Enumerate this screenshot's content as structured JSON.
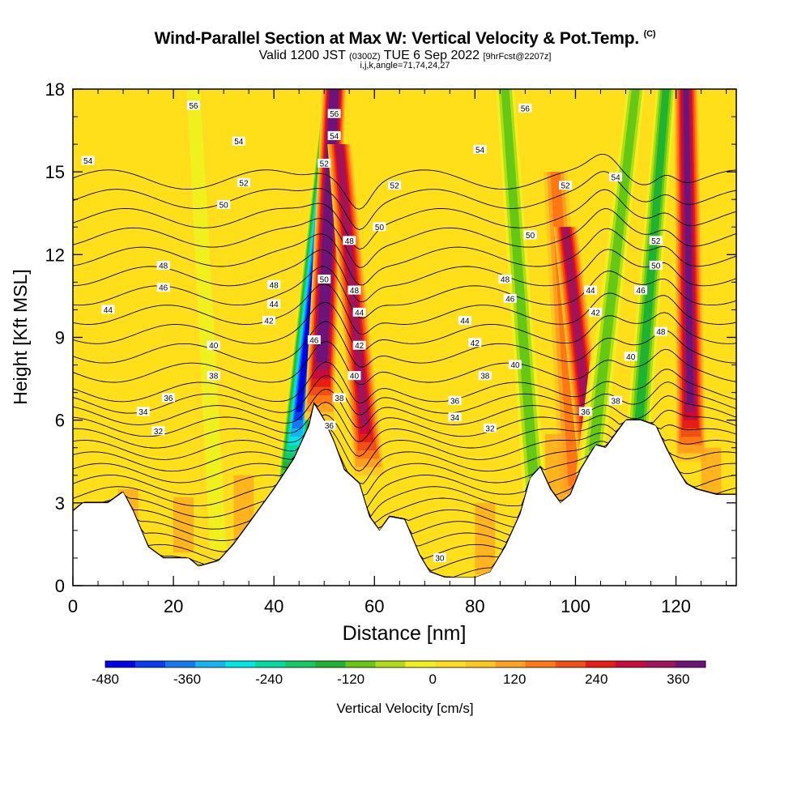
{
  "title": {
    "main": "Wind-Parallel Section at Max W: Vertical Velocity & Pot.Temp.",
    "copyright": "(C)",
    "valid_prefix": "Valid 1200 JST",
    "utc": "(0300Z)",
    "valid_date": "TUE 6 Sep 2022",
    "fcst": "[9hrFcst@2207z]",
    "indices": "i,j,k,angle=71,74,24,27"
  },
  "colors": {
    "ground": "#ffffff",
    "base": "#ffdf1a",
    "palette": [
      "#0000e6",
      "#0a3cf0",
      "#1478f0",
      "#14b4f0",
      "#00e6e6",
      "#00dca0",
      "#14c864",
      "#1eb432",
      "#64c814",
      "#b4dc14",
      "#f0f01e",
      "#ffdc1e",
      "#ffc81e",
      "#ffa01e",
      "#ff7814",
      "#f05014",
      "#e61e14",
      "#c80a3c",
      "#a0145a",
      "#6e1478"
    ]
  },
  "chart_data": {
    "type": "heatmap",
    "xlabel": "Distance [nm]",
    "ylabel": "Height [Kft MSL]",
    "xlim": [
      0,
      132
    ],
    "ylim": [
      0,
      18
    ],
    "x_ticks": [
      0,
      20,
      40,
      60,
      80,
      100,
      120
    ],
    "y_ticks": [
      0,
      3,
      6,
      9,
      12,
      15,
      18
    ],
    "colorbar": {
      "label": "Vertical Velocity [cm/s]",
      "range": [
        -480,
        400
      ],
      "step": 40,
      "tick_labels": [
        -480,
        -360,
        -240,
        -120,
        0,
        120,
        240,
        360
      ]
    },
    "terrain_profile": [
      [
        0,
        2.7
      ],
      [
        2,
        3.0
      ],
      [
        7,
        3.0
      ],
      [
        10,
        3.4
      ],
      [
        12,
        2.7
      ],
      [
        15,
        1.4
      ],
      [
        18,
        1.0
      ],
      [
        23,
        1.0
      ],
      [
        25,
        0.7
      ],
      [
        29,
        0.9
      ],
      [
        32,
        1.5
      ],
      [
        36,
        2.5
      ],
      [
        40,
        3.5
      ],
      [
        44,
        4.6
      ],
      [
        47,
        5.8
      ],
      [
        48,
        6.6
      ],
      [
        50,
        6.0
      ],
      [
        52,
        5.2
      ],
      [
        54,
        4.2
      ],
      [
        57,
        3.7
      ],
      [
        59,
        2.5
      ],
      [
        61,
        2.0
      ],
      [
        63,
        2.5
      ],
      [
        66,
        2.4
      ],
      [
        69,
        1.1
      ],
      [
        71,
        0.5
      ],
      [
        74,
        0.3
      ],
      [
        78,
        0.3
      ],
      [
        80,
        0.3
      ],
      [
        83,
        0.5
      ],
      [
        86,
        1.4
      ],
      [
        89,
        2.6
      ],
      [
        91,
        3.9
      ],
      [
        93,
        4.3
      ],
      [
        95,
        3.5
      ],
      [
        97,
        3.0
      ],
      [
        99,
        3.3
      ],
      [
        101,
        4.2
      ],
      [
        104,
        5.1
      ],
      [
        106,
        5.0
      ],
      [
        108,
        5.5
      ],
      [
        110,
        6.0
      ],
      [
        113,
        6.0
      ],
      [
        116,
        5.8
      ],
      [
        118,
        5.0
      ],
      [
        120,
        4.3
      ],
      [
        122,
        3.7
      ],
      [
        124,
        3.5
      ],
      [
        128,
        3.3
      ],
      [
        132,
        3.3
      ]
    ],
    "updraft_bands": [
      {
        "x_base": 43,
        "x_top": 52,
        "h_min": 3,
        "h_max": 18,
        "w": -480
      },
      {
        "x_base": 49,
        "x_top": 52,
        "h_min": 6,
        "h_max": 18,
        "w": 400
      },
      {
        "x_base": 59,
        "x_top": 53,
        "h_min": 4,
        "h_max": 16,
        "w": 280
      },
      {
        "x_base": 92,
        "x_top": 86,
        "h_min": 3,
        "h_max": 18,
        "w": -160
      },
      {
        "x_base": 100,
        "x_top": 96,
        "h_min": 3,
        "h_max": 15,
        "w": 120
      },
      {
        "x_base": 104,
        "x_top": 98,
        "h_min": 3.5,
        "h_max": 13,
        "w": 280
      },
      {
        "x_base": 103,
        "x_top": 112,
        "h_min": 4,
        "h_max": 18,
        "w": -160
      },
      {
        "x_base": 112,
        "x_top": 118,
        "h_min": 4.5,
        "h_max": 18,
        "w": -200
      },
      {
        "x_base": 123,
        "x_top": 122,
        "h_min": 4.5,
        "h_max": 18,
        "w": 320
      },
      {
        "x_base": 29,
        "x_top": 24,
        "h_min": 1,
        "h_max": 18,
        "w": -80
      }
    ],
    "pot_temp_levels": [
      30,
      32,
      34,
      36,
      38,
      40,
      42,
      44,
      46,
      48,
      50,
      52,
      54,
      56
    ],
    "contour_labels": [
      {
        "x": 24,
        "y": 17.4,
        "label": "56"
      },
      {
        "x": 33,
        "y": 16.1,
        "label": "54"
      },
      {
        "x": 3,
        "y": 15.4,
        "label": "54"
      },
      {
        "x": 34,
        "y": 14.6,
        "label": "52"
      },
      {
        "x": 30,
        "y": 13.8,
        "label": "50"
      },
      {
        "x": 18,
        "y": 11.6,
        "label": "48"
      },
      {
        "x": 18,
        "y": 10.8,
        "label": "46"
      },
      {
        "x": 7,
        "y": 10.0,
        "label": "44"
      },
      {
        "x": 40,
        "y": 10.9,
        "label": "48"
      },
      {
        "x": 40,
        "y": 10.2,
        "label": "44"
      },
      {
        "x": 39,
        "y": 9.6,
        "label": "42"
      },
      {
        "x": 28,
        "y": 8.7,
        "label": "40"
      },
      {
        "x": 28,
        "y": 7.6,
        "label": "38"
      },
      {
        "x": 19,
        "y": 6.8,
        "label": "36"
      },
      {
        "x": 14,
        "y": 6.3,
        "label": "34"
      },
      {
        "x": 17,
        "y": 5.6,
        "label": "32"
      },
      {
        "x": 52,
        "y": 17.1,
        "label": "56"
      },
      {
        "x": 52,
        "y": 16.3,
        "label": "54"
      },
      {
        "x": 50,
        "y": 15.3,
        "label": "52"
      },
      {
        "x": 55,
        "y": 12.5,
        "label": "48"
      },
      {
        "x": 50,
        "y": 11.1,
        "label": "50"
      },
      {
        "x": 56,
        "y": 10.7,
        "label": "48"
      },
      {
        "x": 57,
        "y": 9.9,
        "label": "44"
      },
      {
        "x": 57,
        "y": 8.7,
        "label": "42"
      },
      {
        "x": 48,
        "y": 8.9,
        "label": "46"
      },
      {
        "x": 56,
        "y": 7.6,
        "label": "40"
      },
      {
        "x": 53,
        "y": 6.8,
        "label": "38"
      },
      {
        "x": 51,
        "y": 5.8,
        "label": "36"
      },
      {
        "x": 64,
        "y": 14.5,
        "label": "52"
      },
      {
        "x": 61,
        "y": 13.0,
        "label": "50"
      },
      {
        "x": 90,
        "y": 17.3,
        "label": "56"
      },
      {
        "x": 81,
        "y": 15.8,
        "label": "54"
      },
      {
        "x": 98,
        "y": 14.5,
        "label": "52"
      },
      {
        "x": 91,
        "y": 12.7,
        "label": "50"
      },
      {
        "x": 86,
        "y": 11.1,
        "label": "48"
      },
      {
        "x": 87,
        "y": 10.4,
        "label": "46"
      },
      {
        "x": 78,
        "y": 9.6,
        "label": "44"
      },
      {
        "x": 80,
        "y": 8.8,
        "label": "42"
      },
      {
        "x": 88,
        "y": 8.0,
        "label": "40"
      },
      {
        "x": 82,
        "y": 7.6,
        "label": "38"
      },
      {
        "x": 76,
        "y": 6.7,
        "label": "36"
      },
      {
        "x": 76,
        "y": 6.1,
        "label": "34"
      },
      {
        "x": 83,
        "y": 5.7,
        "label": "32"
      },
      {
        "x": 73,
        "y": 1.0,
        "label": "30"
      },
      {
        "x": 108,
        "y": 14.8,
        "label": "54"
      },
      {
        "x": 116,
        "y": 12.5,
        "label": "52"
      },
      {
        "x": 116,
        "y": 11.6,
        "label": "50"
      },
      {
        "x": 103,
        "y": 10.7,
        "label": "44"
      },
      {
        "x": 104,
        "y": 9.9,
        "label": "42"
      },
      {
        "x": 113,
        "y": 10.7,
        "label": "46"
      },
      {
        "x": 117,
        "y": 9.2,
        "label": "48"
      },
      {
        "x": 111,
        "y": 8.3,
        "label": "40"
      },
      {
        "x": 108,
        "y": 6.7,
        "label": "38"
      },
      {
        "x": 102,
        "y": 6.3,
        "label": "36"
      }
    ]
  }
}
